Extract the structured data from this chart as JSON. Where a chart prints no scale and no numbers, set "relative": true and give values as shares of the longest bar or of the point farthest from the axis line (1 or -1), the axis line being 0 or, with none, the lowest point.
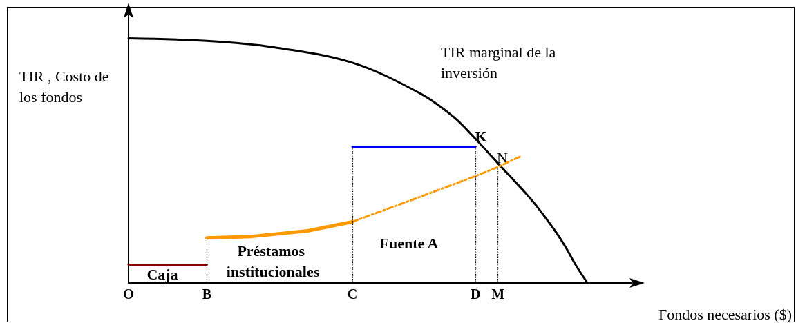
{
  "chart_data": {
    "type": "line",
    "relative": true,
    "xlabel": "Fondos necesarios ($)",
    "ylabel": "TIR , Costo de los fondos",
    "categories": [
      "O",
      null,
      null,
      null,
      null,
      null,
      null,
      "B",
      null,
      null,
      null,
      null,
      null,
      null,
      null,
      null,
      null,
      null,
      null,
      null,
      "C",
      null,
      null,
      null,
      null,
      null,
      null,
      null,
      null,
      null,
      null,
      "D",
      null,
      "M",
      null,
      null,
      null,
      null,
      null,
      null,
      null,
      null,
      null,
      null,
      null,
      null
    ],
    "grid": false,
    "marker": "none",
    "series": [
      {
        "color": "#000000",
        "line_style": "solid",
        "values": [
          1,
          null,
          null,
          null,
          null,
          null,
          null,
          0.989,
          null,
          null,
          null,
          null,
          null,
          0.963,
          null,
          null,
          null,
          null,
          null,
          null,
          0.9,
          null,
          null,
          null,
          null,
          null,
          0.776,
          null,
          null,
          0.68,
          null,
          0.589,
          null,
          0.489,
          null,
          null,
          0.34,
          null,
          0.22,
          0.15,
          0.07,
          0,
          null,
          null,
          null,
          null
        ]
      },
      {
        "color": "#8b0000",
        "line_style": "solid",
        "values": [
          0.075,
          null,
          null,
          null,
          null,
          null,
          null,
          0.075,
          null,
          null,
          null,
          null,
          null,
          null,
          null,
          null,
          null,
          null,
          null,
          null,
          null,
          null,
          null,
          null,
          null,
          null,
          null,
          null,
          null,
          null,
          null,
          null,
          null,
          null,
          null,
          null,
          null,
          null,
          null,
          null,
          null,
          null,
          null,
          null,
          null,
          null
        ]
      },
      {
        "color": "#ff9900",
        "line_style": "solid",
        "values": [
          null,
          null,
          null,
          null,
          null,
          null,
          null,
          0.184,
          null,
          null,
          null,
          0.19,
          null,
          null,
          null,
          null,
          0.213,
          null,
          null,
          null,
          0.25,
          null,
          null,
          null,
          null,
          null,
          null,
          null,
          null,
          null,
          null,
          null,
          null,
          null,
          null,
          null,
          null,
          null,
          null,
          null,
          null,
          null,
          null,
          null,
          null,
          null
        ]
      },
      {
        "color": "#ff9900",
        "line_style": "dashed",
        "values": [
          null,
          null,
          null,
          null,
          null,
          null,
          null,
          null,
          null,
          null,
          null,
          null,
          null,
          null,
          null,
          null,
          null,
          null,
          null,
          null,
          0.25,
          null,
          null,
          null,
          null,
          null,
          0.351,
          null,
          null,
          null,
          null,
          0.437,
          null,
          0.474,
          null,
          0.517,
          null,
          null,
          null,
          null,
          null,
          null,
          null,
          null,
          null,
          null
        ]
      },
      {
        "color": "#0000ff",
        "line_style": "solid",
        "values": [
          null,
          null,
          null,
          null,
          null,
          null,
          null,
          null,
          null,
          null,
          null,
          null,
          null,
          null,
          null,
          null,
          null,
          null,
          null,
          null,
          0.557,
          null,
          null,
          null,
          null,
          null,
          null,
          null,
          null,
          null,
          null,
          0.557,
          null,
          null,
          null,
          null,
          null,
          null,
          null,
          null,
          null,
          null,
          null,
          null,
          null,
          null
        ]
      }
    ],
    "ref_lines": [
      {
        "axis": "x",
        "value": "B",
        "line_style": "dotted",
        "color": "#000000"
      },
      {
        "axis": "x",
        "value": "C",
        "line_style": "dotted",
        "color": "#000000"
      },
      {
        "axis": "x",
        "value": "D",
        "line_style": "dotted",
        "color": "#000000"
      },
      {
        "axis": "x",
        "value": "M",
        "line_style": "dotted",
        "color": "#000000"
      }
    ],
    "annotations": [
      "TIR marginal de la inversión",
      "K",
      "N",
      "Caja",
      "Préstamos institucionales",
      "Fuente A"
    ]
  }
}
